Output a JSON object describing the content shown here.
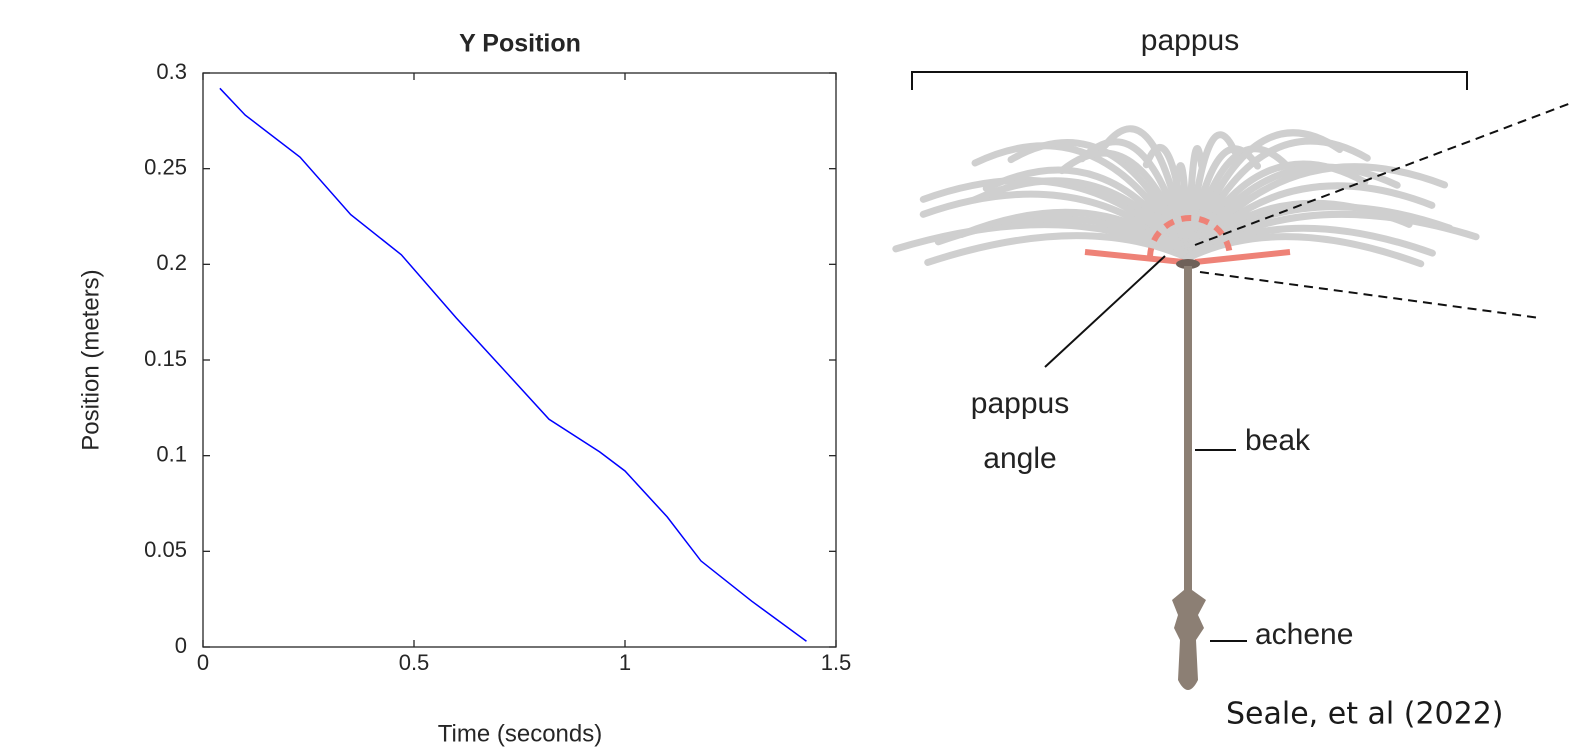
{
  "chart_data": {
    "type": "line",
    "title": "Y Position",
    "x_label": "Time (seconds)",
    "y_label": "Position (meters)",
    "x": [
      0.04,
      0.1,
      0.23,
      0.35,
      0.47,
      0.6,
      0.7,
      0.82,
      0.94,
      1.0,
      1.1,
      1.18,
      1.3,
      1.43
    ],
    "values": [
      0.292,
      0.278,
      0.256,
      0.226,
      0.205,
      0.172,
      0.148,
      0.119,
      0.102,
      0.092,
      0.068,
      0.045,
      0.024,
      0.003
    ],
    "color": "#0000ff",
    "xlim": [
      0,
      1.5
    ],
    "xticks": [
      0,
      0.5,
      1,
      1.5
    ],
    "ylim": [
      0,
      0.3
    ],
    "yticks": [
      0,
      0.05,
      0.1,
      0.15,
      0.2,
      0.25,
      0.3
    ],
    "grid": false
  },
  "diagram": {
    "pappus": "pappus",
    "pappus_angle": [
      "pappus",
      "angle"
    ],
    "beak": "beak",
    "achene": "achene",
    "citation": "Seale, et al (2022)"
  }
}
